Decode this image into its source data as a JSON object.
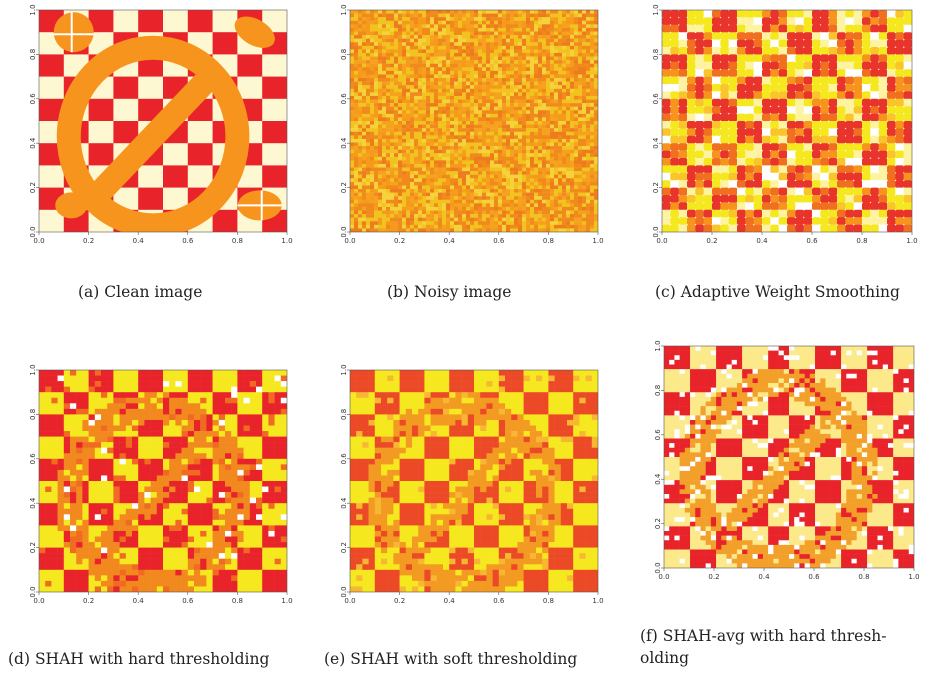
{
  "figure": {
    "panels": [
      {
        "id": "a",
        "caption": "(a) Clean image",
        "style": "clean"
      },
      {
        "id": "b",
        "caption": "(b) Noisy image",
        "style": "noisy"
      },
      {
        "id": "c",
        "caption": "(c) Adaptive Weight Smoothing",
        "style": "aws"
      },
      {
        "id": "d",
        "caption": "(d) SHAH with hard thresholding",
        "style": "shah-hard"
      },
      {
        "id": "e",
        "caption": "(e) SHAH with soft thresholding",
        "style": "shah-soft"
      },
      {
        "id": "f",
        "caption": "(f) SHAH-avg with hard thresh- olding",
        "style": "shah-avg"
      }
    ],
    "axis_ticks": [
      "0.0",
      "0.2",
      "0.4",
      "0.6",
      "0.8",
      "1.0"
    ],
    "palette": {
      "red": "#e8232a",
      "orange": "#f7941d",
      "yellow": "#f5e81e",
      "cream": "#fdf8d2",
      "deep_orange": "#ef6a20",
      "light_yellow": "#fbf5a8"
    }
  }
}
